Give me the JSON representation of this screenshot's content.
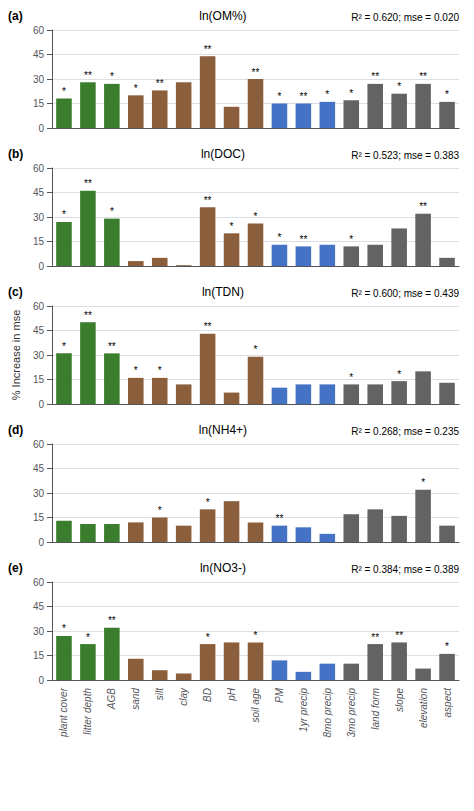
{
  "chart_data": [
    {
      "type": "bar",
      "label": "(a)",
      "title": "ln(OM%)",
      "subtitle": "R² = 0.620; mse = 0.020",
      "categories": [
        "plant cover",
        "litter depth",
        "AGB",
        "sand",
        "silt",
        "clay",
        "BD",
        "pH",
        "soil age",
        "PM",
        "1yr precip",
        "8mo precip",
        "3mo precip",
        "land form",
        "slope",
        "elevation",
        "aspect"
      ],
      "values": [
        18,
        28,
        27,
        20,
        23,
        28,
        44,
        13,
        30,
        15,
        15,
        16,
        17,
        27,
        21,
        27,
        16
      ],
      "annotations": [
        {
          "x": "plant cover",
          "text": "*"
        },
        {
          "x": "litter depth",
          "text": "**"
        },
        {
          "x": "AGB",
          "text": "*"
        },
        {
          "x": "sand",
          "text": "*"
        },
        {
          "x": "silt",
          "text": "**"
        },
        {
          "x": "BD",
          "text": "**"
        },
        {
          "x": "soil age",
          "text": "**"
        },
        {
          "x": "PM",
          "text": "*"
        },
        {
          "x": "1yr precip",
          "text": "**"
        },
        {
          "x": "8mo precip",
          "text": "*"
        },
        {
          "x": "3mo precip",
          "text": "*"
        },
        {
          "x": "land form",
          "text": "**"
        },
        {
          "x": "slope",
          "text": "*"
        },
        {
          "x": "elevation",
          "text": "**"
        },
        {
          "x": "aspect",
          "text": "*"
        }
      ],
      "colors": [
        "#3a7d2c",
        "#3a7d2c",
        "#3a7d2c",
        "#8B5E3C",
        "#8B5E3C",
        "#8B5E3C",
        "#8B5E3C",
        "#8B5E3C",
        "#8B5E3C",
        "#4472C4",
        "#4472C4",
        "#4472C4",
        "#636363",
        "#636363",
        "#636363",
        "#636363",
        "#636363"
      ],
      "ylim": [
        0,
        60
      ],
      "yticks": [
        0,
        15,
        30,
        45,
        60
      ],
      "grid": true,
      "tick_labels": "y"
    },
    {
      "type": "bar",
      "label": "(b)",
      "title": "ln(DOC)",
      "subtitle": "R² = 0.523; mse = 0.383",
      "categories": [
        "plant cover",
        "litter depth",
        "AGB",
        "sand",
        "silt",
        "clay",
        "BD",
        "pH",
        "soil age",
        "PM",
        "1yr precip",
        "8mo precip",
        "3mo precip",
        "land form",
        "slope",
        "elevation",
        "aspect"
      ],
      "values": [
        27,
        46,
        29,
        3,
        5,
        0.5,
        36,
        20,
        26,
        13,
        12,
        13,
        12,
        13,
        23,
        32,
        5
      ],
      "annotations": [
        {
          "x": "plant cover",
          "text": "*"
        },
        {
          "x": "litter depth",
          "text": "**"
        },
        {
          "x": "AGB",
          "text": "*"
        },
        {
          "x": "BD",
          "text": "**"
        },
        {
          "x": "pH",
          "text": "*"
        },
        {
          "x": "soil age",
          "text": "*"
        },
        {
          "x": "PM",
          "text": "*"
        },
        {
          "x": "1yr precip",
          "text": "**"
        },
        {
          "x": "3mo precip",
          "text": "*"
        },
        {
          "x": "elevation",
          "text": "**"
        }
      ],
      "colors": [
        "#3a7d2c",
        "#3a7d2c",
        "#3a7d2c",
        "#8B5E3C",
        "#8B5E3C",
        "#8B5E3C",
        "#8B5E3C",
        "#8B5E3C",
        "#8B5E3C",
        "#4472C4",
        "#4472C4",
        "#4472C4",
        "#636363",
        "#636363",
        "#636363",
        "#636363",
        "#636363"
      ],
      "ylim": [
        0,
        60
      ],
      "yticks": [
        0,
        15,
        30,
        45,
        60
      ],
      "grid": true,
      "tick_labels": "y"
    },
    {
      "type": "bar",
      "label": "(c)",
      "title": "ln(TDN)",
      "subtitle": "R² = 0.600; mse = 0.439",
      "ylabel": "% Increase in mse",
      "categories": [
        "plant cover",
        "litter depth",
        "AGB",
        "sand",
        "silt",
        "clay",
        "BD",
        "pH",
        "soil age",
        "PM",
        "1yr precip",
        "8mo precip",
        "3mo precip",
        "land form",
        "slope",
        "elevation",
        "aspect"
      ],
      "values": [
        31,
        50,
        31,
        16,
        16,
        12,
        43,
        7,
        29,
        10,
        12,
        12,
        12,
        12,
        14,
        20,
        13
      ],
      "annotations": [
        {
          "x": "plant cover",
          "text": "*"
        },
        {
          "x": "litter depth",
          "text": "**"
        },
        {
          "x": "AGB",
          "text": "**"
        },
        {
          "x": "sand",
          "text": "*"
        },
        {
          "x": "silt",
          "text": "*"
        },
        {
          "x": "BD",
          "text": "**"
        },
        {
          "x": "soil age",
          "text": "*"
        },
        {
          "x": "3mo precip",
          "text": "*"
        },
        {
          "x": "slope",
          "text": "*"
        }
      ],
      "colors": [
        "#3a7d2c",
        "#3a7d2c",
        "#3a7d2c",
        "#8B5E3C",
        "#8B5E3C",
        "#8B5E3C",
        "#8B5E3C",
        "#8B5E3C",
        "#8B5E3C",
        "#4472C4",
        "#4472C4",
        "#4472C4",
        "#636363",
        "#636363",
        "#636363",
        "#636363",
        "#636363"
      ],
      "ylim": [
        0,
        60
      ],
      "yticks": [
        0,
        15,
        30,
        45,
        60
      ],
      "grid": true,
      "tick_labels": "y"
    },
    {
      "type": "bar",
      "label": "(d)",
      "title": "ln(NH4+)",
      "subtitle": "R² = 0.268; mse = 0.235",
      "categories": [
        "plant cover",
        "litter depth",
        "AGB",
        "sand",
        "silt",
        "clay",
        "BD",
        "pH",
        "soil age",
        "PM",
        "1yr precip",
        "8mo precip",
        "3mo precip",
        "land form",
        "slope",
        "elevation",
        "aspect"
      ],
      "values": [
        13,
        11,
        11,
        12,
        15,
        10,
        20,
        25,
        12,
        10,
        9,
        5,
        17,
        20,
        16,
        32,
        10
      ],
      "annotations": [
        {
          "x": "silt",
          "text": "*"
        },
        {
          "x": "BD",
          "text": "*"
        },
        {
          "x": "PM",
          "text": "**"
        },
        {
          "x": "elevation",
          "text": "*"
        }
      ],
      "colors": [
        "#3a7d2c",
        "#3a7d2c",
        "#3a7d2c",
        "#8B5E3C",
        "#8B5E3C",
        "#8B5E3C",
        "#8B5E3C",
        "#8B5E3C",
        "#8B5E3C",
        "#4472C4",
        "#4472C4",
        "#4472C4",
        "#636363",
        "#636363",
        "#636363",
        "#636363",
        "#636363"
      ],
      "ylim": [
        0,
        60
      ],
      "yticks": [
        0,
        15,
        30,
        45,
        60
      ],
      "grid": true,
      "tick_labels": "y"
    },
    {
      "type": "bar",
      "label": "(e)",
      "title": "ln(NO3-)",
      "subtitle": "R² = 0.384; mse = 0.389",
      "categories": [
        "plant cover",
        "litter depth",
        "AGB",
        "sand",
        "silt",
        "clay",
        "BD",
        "pH",
        "soil age",
        "PM",
        "1yr precip",
        "8mo precip",
        "3mo precip",
        "land form",
        "slope",
        "elevation",
        "aspect"
      ],
      "values": [
        27,
        22,
        32,
        13,
        6,
        4,
        22,
        23,
        23,
        12,
        5,
        10,
        10,
        22,
        23,
        7,
        16
      ],
      "annotations": [
        {
          "x": "plant cover",
          "text": "*"
        },
        {
          "x": "litter depth",
          "text": "*"
        },
        {
          "x": "AGB",
          "text": "**"
        },
        {
          "x": "BD",
          "text": "*"
        },
        {
          "x": "soil age",
          "text": "*"
        },
        {
          "x": "land form",
          "text": "**"
        },
        {
          "x": "slope",
          "text": "**"
        },
        {
          "x": "aspect",
          "text": "*"
        }
      ],
      "colors": [
        "#3a7d2c",
        "#3a7d2c",
        "#3a7d2c",
        "#8B5E3C",
        "#8B5E3C",
        "#8B5E3C",
        "#8B5E3C",
        "#8B5E3C",
        "#8B5E3C",
        "#4472C4",
        "#4472C4",
        "#4472C4",
        "#636363",
        "#636363",
        "#636363",
        "#636363",
        "#636363"
      ],
      "ylim": [
        0,
        60
      ],
      "yticks": [
        0,
        15,
        30,
        45,
        60
      ],
      "grid": true
    }
  ]
}
